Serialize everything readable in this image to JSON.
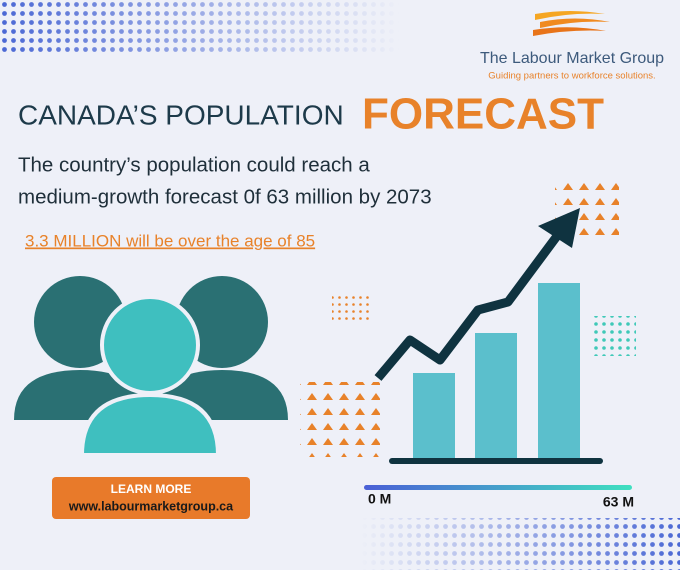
{
  "logo": {
    "name": "The Labour Market Group",
    "tagline": "Guiding partners to workforce solutions."
  },
  "title": {
    "lead": "CANADA’S POPULATION",
    "highlight": "FORECAST"
  },
  "subtitle": {
    "lines": [
      "The country’s population could reach a",
      "medium-growth forecast 0f 63 million by 2073"
    ]
  },
  "highlight_note": "3.3 MILLION will be over the age of 85",
  "button": {
    "label": "LEARN MORE",
    "url": "www.labourmarketgroup.ca"
  },
  "scale": {
    "start": "0 M",
    "end": "63 M"
  }
}
